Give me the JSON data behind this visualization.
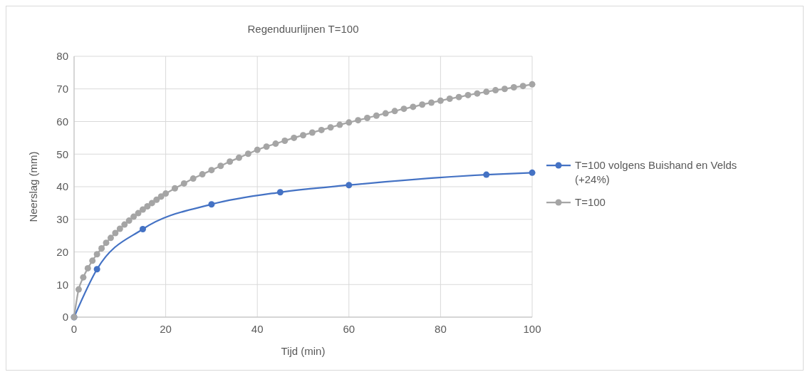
{
  "chart_data": {
    "type": "line",
    "title": "Regenduurlijnen T=100",
    "xlabel": "Tijd (min)",
    "ylabel": "Neerslag (mm)",
    "xlim": [
      0,
      100
    ],
    "xticks": [
      0,
      20,
      40,
      60,
      80,
      100
    ],
    "ylim": [
      0,
      80
    ],
    "yticks": [
      0,
      10,
      20,
      30,
      40,
      50,
      60,
      70,
      80
    ],
    "grid": true,
    "legend": "right",
    "marker": "circle",
    "line_style": "solid",
    "series": [
      {
        "name": "T=100 volgens Buishand en Velds (+24%)",
        "color": "#4472c4",
        "x": [
          0,
          5,
          15,
          30,
          45,
          60,
          90,
          100
        ],
        "values": [
          0,
          14.7,
          27,
          34.6,
          38.3,
          40.5,
          43.7,
          44.3
        ]
      },
      {
        "name": "T=100",
        "color": "#a5a5a5",
        "x": [
          0,
          1,
          2,
          3,
          4,
          5,
          6,
          7,
          8,
          9,
          10,
          11,
          12,
          13,
          14,
          15,
          16,
          17,
          18,
          19,
          20,
          22,
          24,
          26,
          28,
          30,
          32,
          34,
          36,
          38,
          40,
          42,
          44,
          46,
          48,
          50,
          52,
          54,
          56,
          58,
          60,
          62,
          64,
          66,
          68,
          70,
          72,
          74,
          76,
          78,
          80,
          82,
          84,
          86,
          88,
          90,
          92,
          94,
          96,
          98,
          100
        ],
        "values": [
          0,
          8.5,
          12.2,
          15,
          17.3,
          19.3,
          21.1,
          22.8,
          24.3,
          25.8,
          27.1,
          28.4,
          29.6,
          30.8,
          31.9,
          33,
          34,
          35,
          36,
          37,
          37.9,
          39.5,
          41,
          42.5,
          43.8,
          45.1,
          46.4,
          47.7,
          48.9,
          50.1,
          51.3,
          52.3,
          53.2,
          54.1,
          55,
          55.8,
          56.6,
          57.4,
          58.2,
          59,
          59.7,
          60.4,
          61.1,
          61.8,
          62.5,
          63.2,
          63.9,
          64.5,
          65.2,
          65.8,
          66.4,
          67,
          67.5,
          68.1,
          68.6,
          69.1,
          69.6,
          70,
          70.5,
          70.9,
          71.4
        ]
      }
    ]
  }
}
